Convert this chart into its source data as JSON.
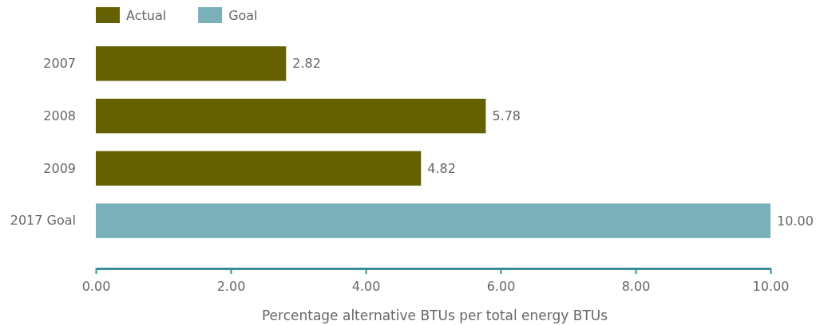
{
  "chart_data": {
    "type": "bar",
    "orientation": "horizontal",
    "xlabel": "Percentage alternative BTUs per total energy BTUs",
    "categories": [
      "2007",
      "2008",
      "2009",
      "2017 Goal"
    ],
    "series": [
      {
        "name": "Actual",
        "color": "#656000",
        "values": [
          2.82,
          5.78,
          4.82,
          null
        ],
        "value_labels": [
          "2.82",
          "5.78",
          "4.82",
          null
        ]
      },
      {
        "name": "Goal",
        "color": "#7ab1b9",
        "values": [
          null,
          null,
          null,
          10.0
        ],
        "value_labels": [
          null,
          null,
          null,
          "10.00"
        ]
      }
    ],
    "xlim": [
      0,
      10
    ],
    "xticks": [
      {
        "value": 0,
        "label": "0.00"
      },
      {
        "value": 2,
        "label": "2.00"
      },
      {
        "value": 4,
        "label": "4.00"
      },
      {
        "value": 6,
        "label": "6.00"
      },
      {
        "value": 8,
        "label": "8.00"
      },
      {
        "value": 10,
        "label": "10.00"
      }
    ],
    "grid": false,
    "legend": "top left"
  }
}
